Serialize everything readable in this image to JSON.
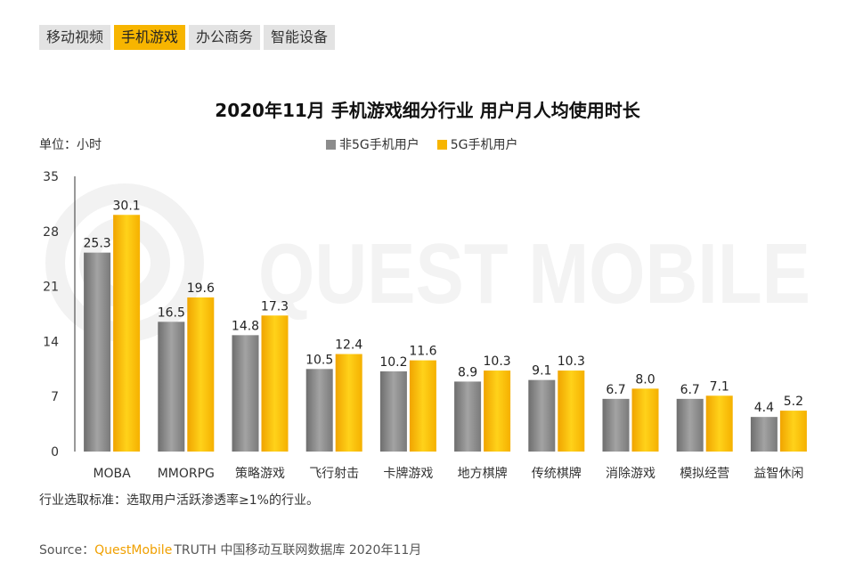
{
  "tabs": [
    {
      "label": "移动视频",
      "active": false
    },
    {
      "label": "手机游戏",
      "active": true
    },
    {
      "label": "办公商务",
      "active": false
    },
    {
      "label": "智能设备",
      "active": false
    }
  ],
  "watermark": "QUEST MOBILE",
  "colors": {
    "non5g": "#8c8c8c",
    "g5": "#f7b500",
    "tab_active": "#f7b500",
    "tab_inactive": "#e3e3e3"
  },
  "chart_data": {
    "type": "bar",
    "title": "2020年11月 手机游戏细分行业 用户月人均使用时长",
    "unit_label": "单位：小时",
    "ylim": [
      0,
      35
    ],
    "yticks": [
      0,
      7,
      14,
      21,
      28,
      35
    ],
    "legend_position": "top-center",
    "grid": false,
    "categories": [
      "MOBA",
      "MMORPG",
      "策略游戏",
      "飞行射击",
      "卡牌游戏",
      "地方棋牌",
      "传统棋牌",
      "消除游戏",
      "模拟经营",
      "益智休闲"
    ],
    "series": [
      {
        "name": "非5G手机用户",
        "color": "#8c8c8c",
        "values": [
          25.3,
          16.5,
          14.8,
          10.5,
          10.2,
          8.9,
          9.1,
          6.7,
          6.7,
          4.4
        ]
      },
      {
        "name": "5G手机用户",
        "color": "#f7b500",
        "values": [
          30.1,
          19.6,
          17.3,
          12.4,
          11.6,
          10.3,
          10.3,
          8.0,
          7.1,
          5.2
        ]
      }
    ]
  },
  "note": "行业选取标准：选取用户活跃渗透率≥1%的行业。",
  "source": {
    "prefix": "Source：",
    "brand": "QuestMobile",
    "text": "TRUTH 中国移动互联网数据库 2020年11月"
  }
}
